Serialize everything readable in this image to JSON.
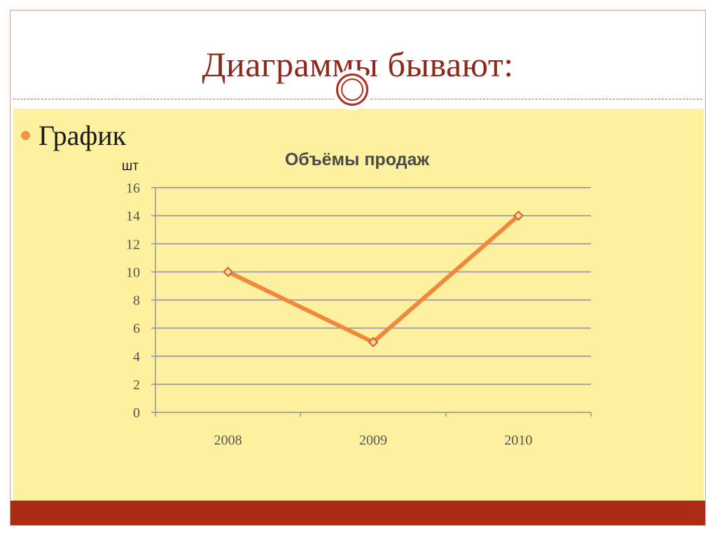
{
  "slide": {
    "title": "Диаграммы бывают:",
    "bullet": "График"
  },
  "colors": {
    "title": "#8b2a1c",
    "content_background": "#fdf19f",
    "bottom_bar": "#ab2b14",
    "bullet": "#f29546",
    "series_line": "#f0893e",
    "marker_fill": "#fbd6a6",
    "marker_stroke": "#c9642a",
    "gridline": "#909090"
  },
  "chart_data": {
    "type": "line",
    "title": "Объёмы продаж",
    "unit_label": "шт",
    "categories": [
      "2008",
      "2009",
      "2010"
    ],
    "series": [
      {
        "values": [
          10,
          5,
          14
        ]
      }
    ],
    "ylim": [
      0,
      16
    ],
    "yticks": [
      0,
      2,
      4,
      6,
      8,
      10,
      12,
      14,
      16
    ],
    "grid": true,
    "legend": "none",
    "marker": "diamond"
  }
}
